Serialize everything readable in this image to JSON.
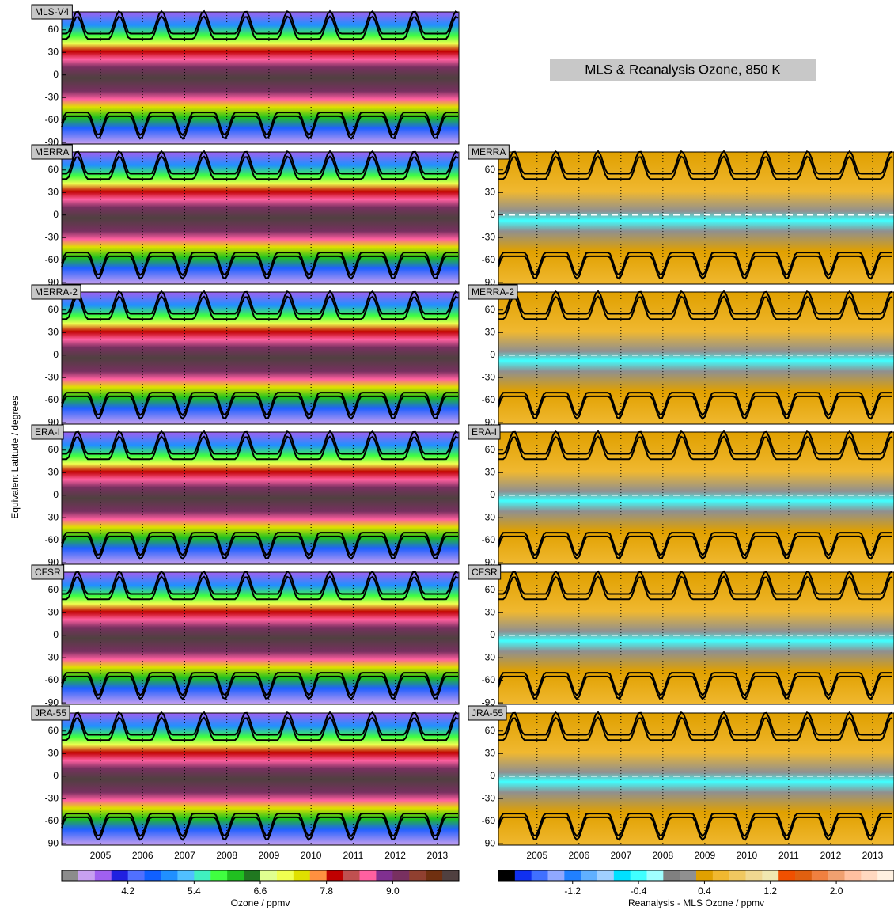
{
  "chart_data": [
    {
      "type": "contour",
      "panels": [
        "MLS-V4",
        "MERRA",
        "MERRA-2",
        "ERA-I",
        "CFSR",
        "JRA-55"
      ],
      "ylabel": "Equivalent Latitude / degrees",
      "xlim": [
        2004.08,
        2013.51
      ],
      "xticks": [
        2005,
        2006,
        2007,
        2008,
        2009,
        2010,
        2011,
        2012,
        2013
      ],
      "ylim": [
        -92,
        84
      ],
      "yticks": [
        -90,
        -60,
        -30,
        0,
        30,
        60
      ],
      "colorbar": {
        "label": "Ozone / ppmv",
        "clim": [
          3.0,
          10.2
        ],
        "ticks": [
          4.2,
          5.4,
          6.6,
          7.8,
          {
            "value": 9.0,
            "label": "9.0"
          }
        ],
        "colors": [
          "#8c8c8c",
          "#c8a0f0",
          "#a060f0",
          "#2020e0",
          "#5070ff",
          "#1060ff",
          "#2090ff",
          "#50c0ff",
          "#40f0c0",
          "#40ff40",
          "#20c020",
          "#207820",
          "#e0ff90",
          "#f0ff50",
          "#e0e000",
          "#ff9040",
          "#c00000",
          "#c05050",
          "#ff60a0",
          "#803090",
          "#783060",
          "#904030",
          "#703010",
          "#504040"
        ]
      }
    },
    {
      "type": "contour",
      "title": "MLS & Reanalysis Ozone, 850 K",
      "panels": [
        "MERRA",
        "MERRA-2",
        "ERA-I",
        "CFSR",
        "JRA-55"
      ],
      "xlim": [
        2004.08,
        2013.51
      ],
      "xticks": [
        2005,
        2006,
        2007,
        2008,
        2009,
        2010,
        2011,
        2012,
        2013
      ],
      "ylim": [
        -92,
        84
      ],
      "yticks": [
        -90,
        -60,
        -30,
        0,
        30,
        60
      ],
      "colorbar": {
        "label": "Reanalysis - MLS Ozone / ppmv",
        "clim": [
          -2.1,
          2.7
        ],
        "ticks": [
          -1.2,
          -0.4,
          0.4,
          1.2,
          {
            "value": 2.0,
            "label": "2.0"
          }
        ],
        "colors": [
          "#000000",
          "#1030f0",
          "#4070ff",
          "#90a8ff",
          "#2080ff",
          "#60b0ff",
          "#a0d0ff",
          "#00e0ff",
          "#40ffff",
          "#a0ffff",
          "#808080",
          "#909090",
          "#e0a000",
          "#f0b830",
          "#f0c860",
          "#f0d890",
          "#f0e8b0",
          "#f05000",
          "#e06010",
          "#f08040",
          "#f0a070",
          "#ffc0a0",
          "#ffd8c0",
          "#fff0e0"
        ]
      }
    }
  ]
}
